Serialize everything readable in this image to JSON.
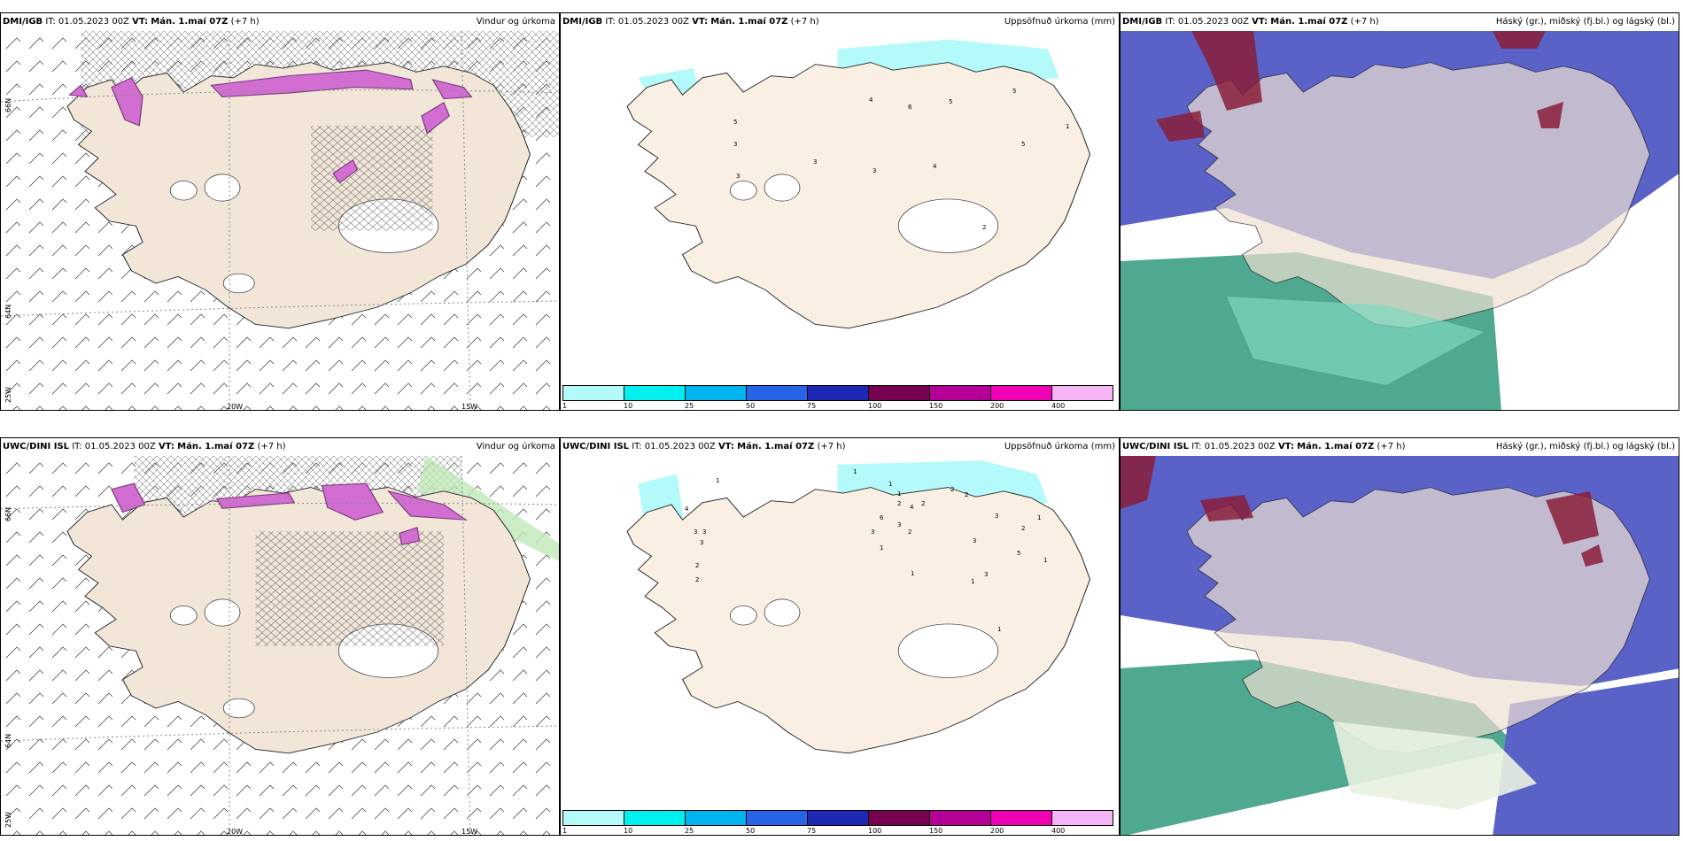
{
  "rows": [
    {
      "model": "DMI/IGB",
      "it_label": "IT:",
      "init_time": "01.05.2023 00Z",
      "vt_label": "VT:",
      "valid_time": "Mán. 1.maí 07Z",
      "lead": "(+7 h)",
      "panels": [
        {
          "field": "Vindur og úrkoma"
        },
        {
          "field": "Uppsöfnuð úrkoma (mm)"
        },
        {
          "field": "Háský (gr.), miðský (fj.bl.) og lágský (bl.)"
        }
      ]
    },
    {
      "model": "UWC/DINI ISL",
      "it_label": "IT:",
      "init_time": "01.05.2023 00Z",
      "vt_label": "VT:",
      "valid_time": "Mán. 1.maí 07Z",
      "lead": "(+7 h)",
      "panels": [
        {
          "field": "Vindur og úrkoma"
        },
        {
          "field": "Uppsöfnuð úrkoma (mm)"
        },
        {
          "field": "Háský (gr.), miðský (fj.bl.) og lágský (bl.)"
        }
      ]
    }
  ],
  "grid_labels": {
    "lat_66": "66N",
    "lat_64": "64N",
    "lat_25": "25W",
    "lon_20": "20W",
    "lon_15": "15W"
  },
  "legend": {
    "ticks": [
      "1",
      "10",
      "25",
      "50",
      "75",
      "100",
      "150",
      "200",
      "400"
    ],
    "colors": [
      "#b4fafa",
      "#00f0f0",
      "#00b4f0",
      "#2864e6",
      "#1e28b4",
      "#780050",
      "#b40096",
      "#f000b4",
      "#f5b4f5"
    ]
  },
  "precip_labels_top": [
    "4",
    "5",
    "6",
    "5",
    "5",
    "4",
    "3",
    "3",
    "3",
    "3",
    "5",
    "1",
    "2"
  ],
  "precip_labels_bottom": [
    "4",
    "3",
    "3",
    "3",
    "2",
    "2",
    "1",
    "1",
    "2",
    "4",
    "2",
    "3",
    "6",
    "3",
    "2",
    "2",
    "2",
    "3",
    "2",
    "5",
    "1",
    "3",
    "1",
    "1",
    "1",
    "1",
    "1",
    "1",
    "3",
    "1"
  ],
  "colors": {
    "land": "#f1e6d8",
    "ocean": "#ffffff",
    "snow_magenta": "#d26ed2",
    "snow_dark": "#7a3a7a",
    "low_cloud": "#5a62c8",
    "mid_cloud": "#4fa890",
    "high_cloud": "#8a1e3a"
  }
}
